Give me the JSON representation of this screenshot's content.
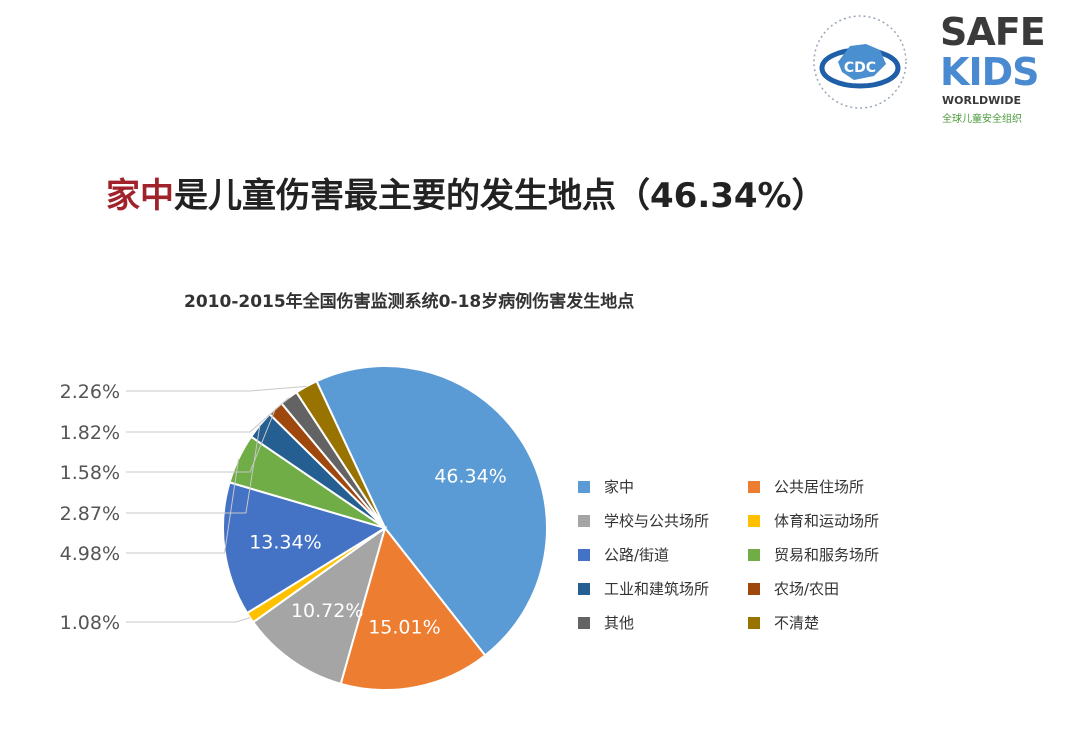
{
  "logos": {
    "cdc_text": "CDC",
    "safekids_line1": "SAFE",
    "safekids_line2": "KIDS",
    "safekids_line3": "WORLDWIDE",
    "safekids_line4": "全球儿童安全组织"
  },
  "headline": {
    "highlight": "家中",
    "rest": "是儿童伤害最主要的发生地点（46.34%）"
  },
  "chart_data": {
    "type": "pie",
    "title": "2010-2015年全国伤害监测系统0-18岁病例伤害发生地点",
    "legend_position": "right",
    "series": [
      {
        "name": "家中",
        "value": 46.34,
        "color": "#5b9bd5",
        "label": "46.34%"
      },
      {
        "name": "公共居住场所",
        "value": 15.01,
        "color": "#ed7d31",
        "label": "15.01%"
      },
      {
        "name": "学校与公共场所",
        "value": 10.72,
        "color": "#a5a5a5",
        "label": "10.72%"
      },
      {
        "name": "体育和运动场所",
        "value": 1.08,
        "color": "#ffc000",
        "label": "1.08%"
      },
      {
        "name": "公路/街道",
        "value": 13.34,
        "color": "#4472c4",
        "label": "13.34%"
      },
      {
        "name": "贸易和服务场所",
        "value": 4.98,
        "color": "#70ad47",
        "label": "4.98%"
      },
      {
        "name": "工业和建筑场所",
        "value": 2.87,
        "color": "#255e91",
        "label": "2.87%"
      },
      {
        "name": "农场/农田",
        "value": 1.58,
        "color": "#9e480e",
        "label": "1.58%"
      },
      {
        "name": "其他",
        "value": 1.82,
        "color": "#636363",
        "label": "1.82%"
      },
      {
        "name": "不清楚",
        "value": 2.26,
        "color": "#997300",
        "label": "2.26%"
      }
    ]
  }
}
